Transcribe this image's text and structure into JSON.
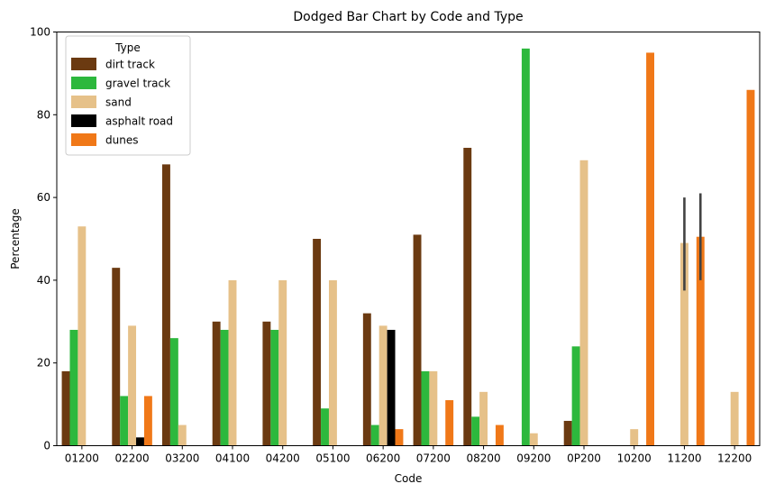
{
  "chart_data": {
    "type": "bar",
    "title": "Dodged Bar Chart by Code and Type",
    "xlabel": "Code",
    "ylabel": "Percentage",
    "ylim": [
      0,
      100
    ],
    "yticks": [
      0,
      20,
      40,
      60,
      80,
      100
    ],
    "categories": [
      "01200",
      "02200",
      "03200",
      "04100",
      "04200",
      "05100",
      "06200",
      "07200",
      "08200",
      "09200",
      "0P200",
      "10200",
      "11200",
      "12200"
    ],
    "legend": {
      "title": "Type",
      "placement": "top-left"
    },
    "series": [
      {
        "name": "dirt track",
        "color": "#6b3a11",
        "values": [
          18,
          43,
          68,
          30,
          30,
          50,
          32,
          51,
          72,
          null,
          6,
          null,
          null,
          null
        ]
      },
      {
        "name": "gravel track",
        "color": "#2db83d",
        "values": [
          28,
          12,
          26,
          28,
          28,
          9,
          5,
          18,
          7,
          96,
          24,
          null,
          null,
          null
        ]
      },
      {
        "name": "sand",
        "color": "#e6c189",
        "values": [
          53,
          29,
          5,
          40,
          40,
          40,
          29,
          18,
          13,
          3,
          69,
          4,
          49,
          13
        ]
      },
      {
        "name": "asphalt road",
        "color": "#000000",
        "values": [
          null,
          2,
          null,
          null,
          null,
          null,
          28,
          null,
          null,
          null,
          null,
          null,
          null,
          null
        ]
      },
      {
        "name": "dunes",
        "color": "#f07818",
        "values": [
          null,
          12,
          null,
          null,
          null,
          null,
          4,
          11,
          5,
          null,
          null,
          95,
          50.5,
          86
        ]
      }
    ],
    "error_bars": [
      {
        "category": "11200",
        "series": "sand",
        "low": 37.5,
        "high": 60
      },
      {
        "category": "11200",
        "series": "dunes",
        "low": 40,
        "high": 61
      }
    ]
  }
}
